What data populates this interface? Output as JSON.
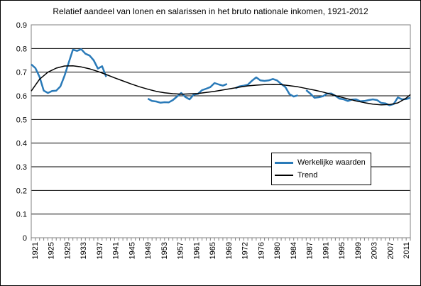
{
  "chart_data": {
    "type": "line",
    "title": "Relatief aandeel van lonen en salarissen in het bruto nationale inkomen, 1921-2012",
    "xlabel": "",
    "ylabel": "",
    "xlim": [
      1921,
      2012
    ],
    "ylim": [
      0,
      0.9
    ],
    "y_ticks": [
      0,
      0.1,
      0.2,
      0.3,
      0.4,
      0.5,
      0.6,
      0.7,
      0.8,
      0.9
    ],
    "y_tick_labels": [
      "0",
      "0.1",
      "0.2",
      "0.3",
      "0.4",
      "0.5",
      "0.6",
      "0.7",
      "0.8",
      "0.9"
    ],
    "x_tick_labels": [
      "1921",
      "1925",
      "1929",
      "1933",
      "1937",
      "1941",
      "1945",
      "1949",
      "1953",
      "1957",
      "1961",
      "1965",
      "1969",
      "1972",
      "1976",
      "1980",
      "1984",
      "1987",
      "1991",
      "1995",
      "1999",
      "2003",
      "2007",
      "2011"
    ],
    "grid": "horizontal",
    "legend_position": "right",
    "series": [
      {
        "name": "Werkelijke waarden",
        "color": "#2a7ab8",
        "segments": [
          [
            [
              1921,
              0.733
            ],
            [
              1922,
              0.717
            ],
            [
              1923,
              0.68
            ],
            [
              1924,
              0.622
            ],
            [
              1925,
              0.612
            ],
            [
              1926,
              0.62
            ],
            [
              1927,
              0.622
            ],
            [
              1928,
              0.64
            ],
            [
              1929,
              0.685
            ],
            [
              1930,
              0.74
            ],
            [
              1931,
              0.795
            ],
            [
              1932,
              0.79
            ],
            [
              1933,
              0.797
            ],
            [
              1934,
              0.778
            ],
            [
              1935,
              0.77
            ],
            [
              1936,
              0.75
            ],
            [
              1937,
              0.715
            ],
            [
              1938,
              0.725
            ],
            [
              1939,
              0.68
            ]
          ],
          [
            [
              1949,
              0.588
            ],
            [
              1950,
              0.578
            ],
            [
              1951,
              0.576
            ],
            [
              1952,
              0.571
            ],
            [
              1953,
              0.573
            ],
            [
              1954,
              0.572
            ],
            [
              1955,
              0.582
            ],
            [
              1956,
              0.597
            ],
            [
              1957,
              0.612
            ],
            [
              1958,
              0.595
            ],
            [
              1959,
              0.585
            ],
            [
              1960,
              0.605
            ],
            [
              1961,
              0.608
            ],
            [
              1962,
              0.624
            ],
            [
              1963,
              0.63
            ],
            [
              1964,
              0.637
            ],
            [
              1965,
              0.654
            ],
            [
              1966,
              0.648
            ],
            [
              1967,
              0.643
            ],
            [
              1968,
              0.65
            ]
          ],
          [
            [
              1970,
              0.632
            ],
            [
              1971,
              0.64
            ],
            [
              1972,
              0.643
            ],
            [
              1973,
              0.647
            ],
            [
              1974,
              0.664
            ],
            [
              1975,
              0.678
            ],
            [
              1976,
              0.665
            ],
            [
              1977,
              0.663
            ],
            [
              1978,
              0.665
            ],
            [
              1979,
              0.671
            ],
            [
              1980,
              0.665
            ],
            [
              1981,
              0.65
            ],
            [
              1982,
              0.637
            ],
            [
              1983,
              0.607
            ],
            [
              1984,
              0.597
            ],
            [
              1985,
              0.602
            ]
          ],
          [
            [
              1987,
              0.624
            ],
            [
              1988,
              0.609
            ],
            [
              1989,
              0.592
            ],
            [
              1990,
              0.594
            ],
            [
              1991,
              0.598
            ],
            [
              1992,
              0.609
            ],
            [
              1993,
              0.61
            ],
            [
              1994,
              0.6
            ],
            [
              1995,
              0.588
            ],
            [
              1996,
              0.585
            ],
            [
              1997,
              0.578
            ],
            [
              1998,
              0.584
            ],
            [
              1999,
              0.585
            ],
            [
              2000,
              0.577
            ],
            [
              2001,
              0.578
            ],
            [
              2002,
              0.582
            ],
            [
              2003,
              0.585
            ],
            [
              2004,
              0.582
            ],
            [
              2005,
              0.57
            ],
            [
              2006,
              0.568
            ],
            [
              2007,
              0.56
            ],
            [
              2008,
              0.565
            ],
            [
              2009,
              0.593
            ],
            [
              2010,
              0.585
            ],
            [
              2011,
              0.586
            ],
            [
              2012,
              0.592
            ]
          ]
        ]
      },
      {
        "name": "Trend",
        "color": "#000000",
        "segments": [
          [
            [
              1921,
              0.62
            ],
            [
              1923,
              0.67
            ],
            [
              1925,
              0.7
            ],
            [
              1927,
              0.717
            ],
            [
              1929,
              0.726
            ],
            [
              1931,
              0.727
            ],
            [
              1933,
              0.722
            ],
            [
              1935,
              0.714
            ],
            [
              1937,
              0.703
            ],
            [
              1939,
              0.69
            ],
            [
              1941,
              0.676
            ],
            [
              1943,
              0.663
            ],
            [
              1945,
              0.65
            ],
            [
              1947,
              0.638
            ],
            [
              1949,
              0.628
            ],
            [
              1951,
              0.619
            ],
            [
              1953,
              0.613
            ],
            [
              1955,
              0.609
            ],
            [
              1957,
              0.607
            ],
            [
              1959,
              0.608
            ],
            [
              1961,
              0.61
            ],
            [
              1963,
              0.614
            ],
            [
              1965,
              0.619
            ],
            [
              1967,
              0.625
            ],
            [
              1969,
              0.631
            ],
            [
              1971,
              0.637
            ],
            [
              1973,
              0.642
            ],
            [
              1975,
              0.645
            ],
            [
              1977,
              0.647
            ],
            [
              1979,
              0.648
            ],
            [
              1981,
              0.647
            ],
            [
              1983,
              0.643
            ],
            [
              1985,
              0.638
            ],
            [
              1987,
              0.631
            ],
            [
              1989,
              0.624
            ],
            [
              1991,
              0.616
            ],
            [
              1993,
              0.606
            ],
            [
              1995,
              0.596
            ],
            [
              1997,
              0.587
            ],
            [
              1999,
              0.578
            ],
            [
              2001,
              0.571
            ],
            [
              2003,
              0.565
            ],
            [
              2005,
              0.562
            ],
            [
              2007,
              0.563
            ],
            [
              2009,
              0.57
            ],
            [
              2011,
              0.59
            ],
            [
              2012,
              0.605
            ]
          ]
        ]
      }
    ]
  }
}
